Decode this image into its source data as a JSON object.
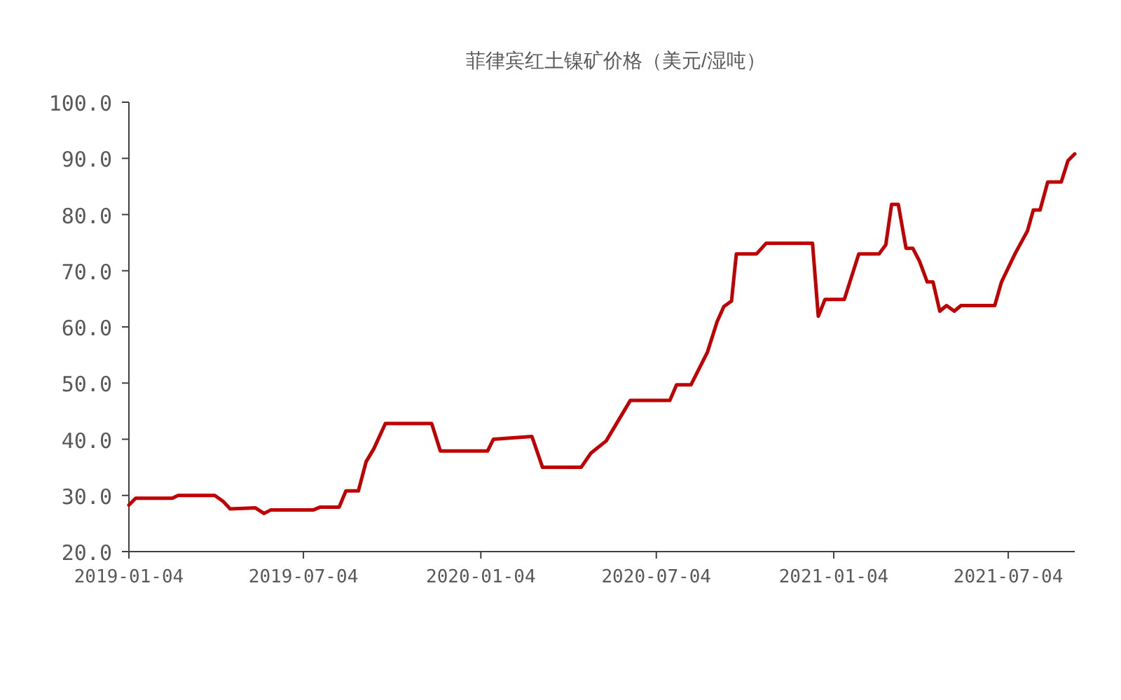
{
  "chart_data": {
    "type": "line",
    "title": "菲律宾红土镍矿价格（美元/湿吨）",
    "x": [
      "2019-01-04",
      "2019-01-11",
      "2019-02-18",
      "2019-02-24",
      "2019-04-03",
      "2019-04-12",
      "2019-04-19",
      "2019-05-15",
      "2019-05-24",
      "2019-05-31",
      "2019-07-14",
      "2019-07-21",
      "2019-08-10",
      "2019-08-17",
      "2019-08-30",
      "2019-09-07",
      "2019-09-15",
      "2019-09-27",
      "2019-11-14",
      "2019-11-23",
      "2020-01-11",
      "2020-01-17",
      "2020-02-26",
      "2020-03-08",
      "2020-03-26",
      "2020-04-17",
      "2020-04-27",
      "2020-05-13",
      "2020-06-07",
      "2020-07-18",
      "2020-07-25",
      "2020-08-09",
      "2020-08-26",
      "2020-09-05",
      "2020-09-12",
      "2020-09-20",
      "2020-09-25",
      "2020-10-16",
      "2020-10-26",
      "2020-12-13",
      "2020-12-19",
      "2020-12-26",
      "2021-01-15",
      "2021-01-30",
      "2021-02-20",
      "2021-02-27",
      "2021-03-05",
      "2021-03-12",
      "2021-03-20",
      "2021-03-27",
      "2021-04-03",
      "2021-04-11",
      "2021-04-17",
      "2021-04-24",
      "2021-05-01",
      "2021-05-09",
      "2021-05-16",
      "2021-06-20",
      "2021-06-27",
      "2021-07-11",
      "2021-07-24",
      "2021-07-30",
      "2021-08-06",
      "2021-08-14",
      "2021-08-28",
      "2021-09-04",
      "2021-09-11"
    ],
    "series": [
      {
        "color": "#c00000",
        "values": [
          28.3,
          29.5,
          29.5,
          30.0,
          30.0,
          28.9,
          27.6,
          27.8,
          26.8,
          27.4,
          27.4,
          27.9,
          27.9,
          30.8,
          30.8,
          36.0,
          38.3,
          42.8,
          42.8,
          37.9,
          37.9,
          40.0,
          40.5,
          35.0,
          35.0,
          35.0,
          37.5,
          39.7,
          46.9,
          46.9,
          49.7,
          49.7,
          55.5,
          60.9,
          63.6,
          64.6,
          73.0,
          73.0,
          74.9,
          74.9,
          61.9,
          64.9,
          64.9,
          73.0,
          73.0,
          74.6,
          81.8,
          81.8,
          74.0,
          74.0,
          71.7,
          68.0,
          68.0,
          62.8,
          63.8,
          62.8,
          63.8,
          63.8,
          68.0,
          73.0,
          77.1,
          80.8,
          80.8,
          85.8,
          85.8,
          89.6,
          90.8
        ]
      }
    ],
    "xlim": [
      "2019-01-04",
      "2021-09-11"
    ],
    "xticks": [
      "2019-01-04",
      "2019-07-04",
      "2020-01-04",
      "2020-07-04",
      "2021-01-04",
      "2021-07-04"
    ],
    "ylim": [
      20,
      100
    ],
    "yticks": [
      {
        "value": 20,
        "label": "20.0"
      },
      {
        "value": 30,
        "label": "30.0"
      },
      {
        "value": 40,
        "label": "40.0"
      },
      {
        "value": 50,
        "label": "50.0"
      },
      {
        "value": 60,
        "label": "60.0"
      },
      {
        "value": 70,
        "label": "70.0"
      },
      {
        "value": 80,
        "label": "80.0"
      },
      {
        "value": 90,
        "label": "90.0"
      },
      {
        "value": 100,
        "label": "100.0"
      }
    ],
    "grid": false,
    "marker": "none",
    "line_style": "solid"
  }
}
